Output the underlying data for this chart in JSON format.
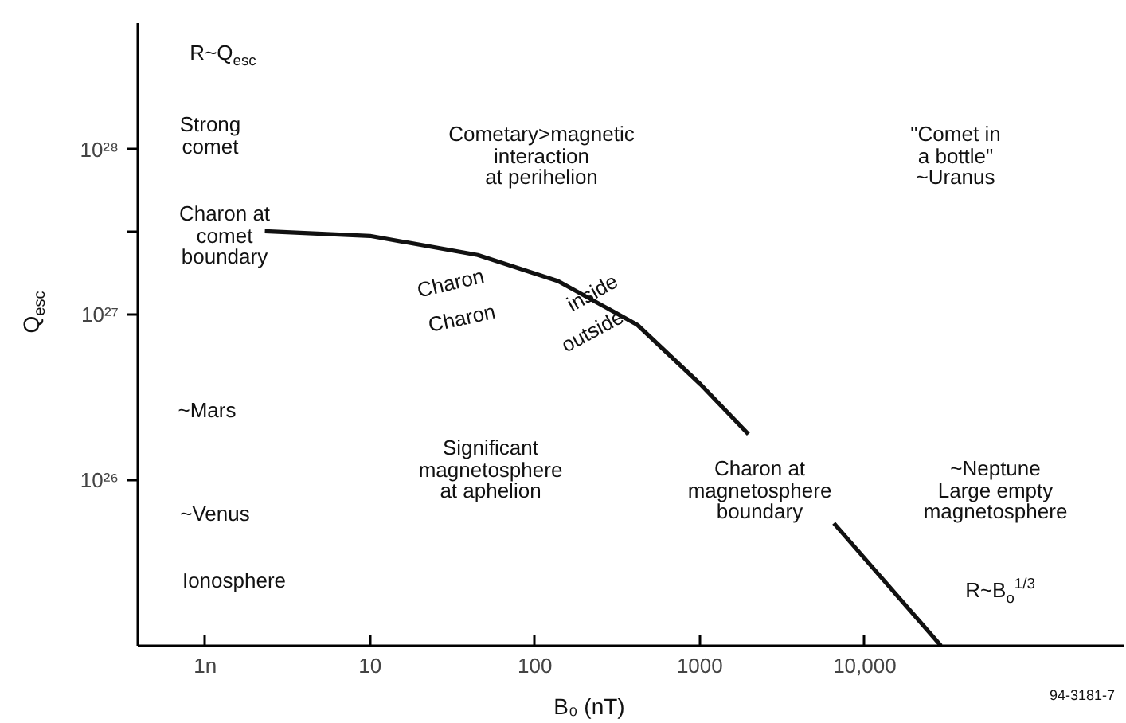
{
  "chart_data": {
    "type": "line",
    "xlabel": "B₀ (nT)",
    "ylabel": "Q$_{esc}$",
    "log": "xy",
    "grid": false,
    "marker": "none",
    "line_style": "solid",
    "xlim": [
      0.39,
      380000
    ],
    "ylim": [
      1e+25,
      5.8e+28
    ],
    "xticks": [
      {
        "value": 1,
        "label": "1n"
      },
      10,
      100,
      1000,
      {
        "value": 10000,
        "label": "10,000"
      }
    ],
    "yticks": [
      {
        "value": 1e+26,
        "label": "10²⁶"
      },
      {
        "value": 1e+27,
        "label": "10²⁷"
      },
      {
        "value": 1e+28,
        "label": "10²⁸"
      },
      {
        "value": 3.16e+27,
        "label": null
      }
    ],
    "series": [
      {
        "color": "#111111",
        "x": [
          2.3,
          10,
          45,
          138,
          418,
          1010,
          1970,
          3000,
          6500,
          29000
        ],
        "values": [
          3.2e+27,
          3e+27,
          2.3e+27,
          1.6e+27,
          8.7e+26,
          3.8e+26,
          1.9e+26,
          null,
          5.5e+25,
          1e+25
        ]
      }
    ],
    "annotations": [
      "R~Q$_{esc}$",
      "Strong\ncomet",
      "Charon at\ncomet\nboundary",
      "~Mars",
      "~Venus",
      "Ionosphere",
      "Cometary>magnetic\ninteraction\nat perihelion",
      "\"Comet in\na bottle\"\n~Uranus",
      "Charon",
      "inside",
      "Charon",
      "outside",
      "Significant\nmagnetosphere\nat aphelion",
      "Charon at\nmagnetosphere\nboundary",
      "~Neptune\nLarge empty\nmagnetosphere",
      "R~B$_{o}$$^{1/3}$",
      "94-3181-7"
    ]
  }
}
